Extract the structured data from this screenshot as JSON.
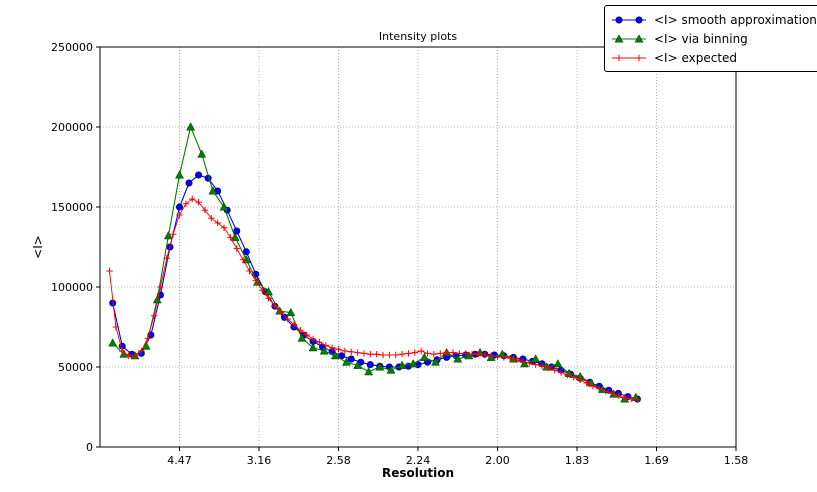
{
  "chart_data": {
    "type": "line",
    "title": "Intensity plots",
    "xlabel": "Resolution",
    "ylabel": "<I>",
    "x_axis_note": "ticks are resolution values (angstroms) evenly spaced in 1/d^2",
    "xlim": [
      0,
      0.4
    ],
    "ylim": [
      0,
      250000
    ],
    "xticks": [
      0.05,
      0.1,
      0.15,
      0.2,
      0.25,
      0.3,
      0.35,
      0.4
    ],
    "xtick_labels": [
      "4.47",
      "3.16",
      "2.58",
      "2.24",
      "2.00",
      "1.83",
      "1.69",
      "1.58"
    ],
    "yticks": [
      0,
      50000,
      100000,
      150000,
      200000,
      250000
    ],
    "ytick_labels": [
      "0",
      "50000",
      "100000",
      "150000",
      "200000",
      "250000"
    ],
    "grid": "dotted",
    "legend_position": "upper right",
    "series": [
      {
        "name": "<I> smooth approximation",
        "color": "#0000ff",
        "marker": "circle",
        "x": [
          0.008,
          0.014,
          0.02,
          0.026,
          0.032,
          0.038,
          0.044,
          0.05,
          0.056,
          0.062,
          0.068,
          0.074,
          0.08,
          0.086,
          0.092,
          0.098,
          0.104,
          0.11,
          0.116,
          0.122,
          0.128,
          0.134,
          0.14,
          0.146,
          0.152,
          0.158,
          0.164,
          0.17,
          0.176,
          0.182,
          0.188,
          0.194,
          0.2,
          0.206,
          0.212,
          0.218,
          0.224,
          0.23,
          0.236,
          0.242,
          0.248,
          0.254,
          0.26,
          0.266,
          0.272,
          0.278,
          0.284,
          0.29,
          0.296,
          0.302,
          0.308,
          0.314,
          0.32,
          0.326,
          0.332,
          0.338
        ],
        "y": [
          90000,
          63000,
          58000,
          58500,
          70000,
          95000,
          125000,
          150000,
          165000,
          170000,
          168000,
          160000,
          148000,
          135000,
          122000,
          108000,
          97000,
          88000,
          81000,
          75000,
          70000,
          66000,
          62500,
          59500,
          57000,
          55000,
          53000,
          51500,
          50500,
          50000,
          50000,
          50500,
          51500,
          53000,
          54500,
          56000,
          57000,
          57500,
          58000,
          58000,
          57500,
          57000,
          56000,
          55000,
          53500,
          52000,
          50000,
          48000,
          45500,
          43000,
          40500,
          38000,
          35500,
          33500,
          31500,
          30000
        ]
      },
      {
        "name": "<I> via binning",
        "color": "#008000",
        "marker": "triangle",
        "x": [
          0.008,
          0.015,
          0.022,
          0.029,
          0.036,
          0.043,
          0.05,
          0.057,
          0.064,
          0.071,
          0.078,
          0.085,
          0.092,
          0.099,
          0.106,
          0.113,
          0.12,
          0.127,
          0.134,
          0.141,
          0.148,
          0.155,
          0.162,
          0.169,
          0.176,
          0.183,
          0.19,
          0.197,
          0.204,
          0.211,
          0.218,
          0.225,
          0.232,
          0.239,
          0.246,
          0.253,
          0.26,
          0.267,
          0.274,
          0.281,
          0.288,
          0.295,
          0.302,
          0.309,
          0.316,
          0.323,
          0.33,
          0.337
        ],
        "y": [
          65000,
          58000,
          57000,
          63000,
          92000,
          132000,
          170000,
          200000,
          183000,
          160000,
          150000,
          131000,
          117000,
          103000,
          97000,
          85000,
          84000,
          68000,
          62000,
          60000,
          57000,
          53000,
          51000,
          47000,
          50000,
          48000,
          51000,
          52000,
          56000,
          53000,
          59000,
          55000,
          57000,
          59000,
          56000,
          58000,
          55000,
          52000,
          55000,
          50000,
          52000,
          46000,
          44000,
          40000,
          36000,
          33000,
          30000,
          31000
        ]
      },
      {
        "name": "<I> expected",
        "color": "#ff0000",
        "marker": "plus",
        "x": [
          0.006,
          0.01,
          0.014,
          0.018,
          0.022,
          0.026,
          0.03,
          0.034,
          0.038,
          0.042,
          0.046,
          0.05,
          0.054,
          0.058,
          0.062,
          0.066,
          0.07,
          0.074,
          0.078,
          0.082,
          0.086,
          0.09,
          0.094,
          0.098,
          0.102,
          0.106,
          0.11,
          0.114,
          0.118,
          0.122,
          0.126,
          0.13,
          0.134,
          0.138,
          0.142,
          0.146,
          0.15,
          0.154,
          0.158,
          0.162,
          0.166,
          0.17,
          0.174,
          0.178,
          0.182,
          0.186,
          0.19,
          0.194,
          0.198,
          0.202,
          0.206,
          0.21,
          0.214,
          0.218,
          0.222,
          0.226,
          0.23,
          0.234,
          0.238,
          0.242,
          0.246,
          0.25,
          0.254,
          0.258,
          0.262,
          0.266,
          0.27,
          0.274,
          0.278,
          0.282,
          0.286,
          0.29,
          0.294,
          0.298,
          0.302,
          0.306,
          0.31,
          0.314,
          0.318,
          0.322,
          0.326,
          0.33,
          0.334,
          0.338
        ],
        "y": [
          110000,
          75000,
          60000,
          57000,
          57000,
          60000,
          68000,
          82000,
          100000,
          118000,
          133000,
          145000,
          152000,
          155000,
          153000,
          148000,
          143000,
          140000,
          137000,
          131000,
          124000,
          117000,
          110000,
          104000,
          98000,
          93000,
          88000,
          84000,
          80000,
          76500,
          73000,
          70000,
          67500,
          65500,
          63500,
          62000,
          61000,
          60000,
          59500,
          59000,
          58500,
          58000,
          58000,
          57500,
          57500,
          57500,
          58000,
          58500,
          59000,
          60000,
          58500,
          58000,
          58500,
          59000,
          59000,
          58500,
          58500,
          58000,
          58000,
          57500,
          57000,
          56500,
          56000,
          55500,
          54500,
          53500,
          52500,
          51500,
          50500,
          49500,
          48000,
          46500,
          45000,
          43500,
          42000,
          40000,
          38000,
          36500,
          35000,
          33500,
          32000,
          31000,
          30000,
          29500
        ]
      }
    ]
  }
}
